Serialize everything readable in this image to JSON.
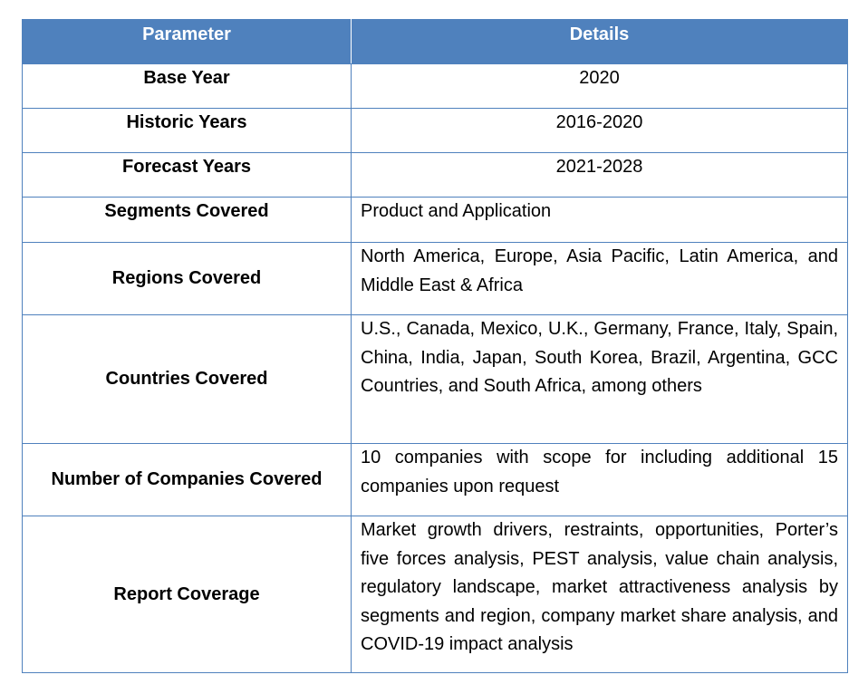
{
  "table": {
    "header": {
      "parameter": "Parameter",
      "details": "Details"
    },
    "rows": [
      {
        "parameter": "Base Year",
        "details": "2020"
      },
      {
        "parameter": "Historic Years",
        "details": "2016-2020"
      },
      {
        "parameter": "Forecast Years",
        "details": "2021-2028"
      },
      {
        "parameter": "Segments Covered",
        "details": "Product and Application"
      },
      {
        "parameter": "Regions Covered",
        "details": "North America, Europe, Asia Pacific, Latin America, and Middle East & Africa"
      },
      {
        "parameter": "Countries Covered",
        "details": "U.S., Canada, Mexico, U.K., Germany, France, Italy, Spain, China, India, Japan, South Korea, Brazil, Argentina, GCC Countries, and South Africa, among others"
      },
      {
        "parameter": "Number of Companies Covered",
        "details": "10 companies with scope for including additional 15 companies upon request"
      },
      {
        "parameter": "Report Coverage",
        "details": "Market growth drivers, restraints, opportunities, Porter’s five forces analysis, PEST analysis, value chain analysis, regulatory landscape, market attractiveness analysis by segments and region, company market share analysis, and COVID-19 impact analysis"
      }
    ]
  },
  "colors": {
    "header_background": "#4f81bd",
    "header_text": "#ffffff",
    "border": "#4f81bd"
  }
}
